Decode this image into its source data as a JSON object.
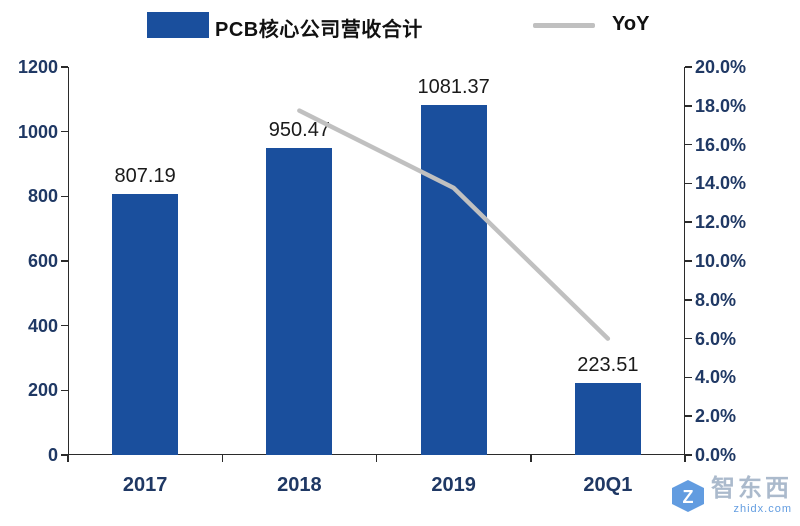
{
  "legend": {
    "bar_label": "PCB核心公司营收合计",
    "line_label": "YoY"
  },
  "colors": {
    "bar": "#1a4f9d",
    "line": "#c0c0c0",
    "axis_text": "#1f3864",
    "data_label": "#1a1a1a",
    "axis_line": "#2b2b2b",
    "watermark": "#2e7cd6"
  },
  "chart_data": {
    "type": "bar",
    "subtype": "bar-line combo with dual y-axes",
    "title": "",
    "categories": [
      "2017",
      "2018",
      "2019",
      "20Q1"
    ],
    "series": [
      {
        "name": "PCB核心公司营收合计",
        "type": "bar",
        "axis": "left",
        "values": [
          807.19,
          950.47,
          1081.37,
          223.51
        ]
      },
      {
        "name": "YoY",
        "type": "line",
        "axis": "right",
        "unit": "%",
        "values": [
          null,
          17.75,
          13.77,
          6.0
        ]
      }
    ],
    "data_labels": [
      "807.19",
      "950.47",
      "1081.37",
      "223.51"
    ],
    "left_axis": {
      "min": 0,
      "max": 1200,
      "step": 200,
      "ticks": [
        "0",
        "200",
        "400",
        "600",
        "800",
        "1000",
        "1200"
      ]
    },
    "right_axis": {
      "min": 0,
      "max": 20,
      "step": 2,
      "ticks": [
        "0.0%",
        "2.0%",
        "4.0%",
        "6.0%",
        "8.0%",
        "10.0%",
        "12.0%",
        "14.0%",
        "16.0%",
        "18.0%",
        "20.0%"
      ]
    },
    "grid": false,
    "legend_position": "top"
  },
  "watermark": {
    "name": "智东西",
    "subtext": "zhidx.com"
  }
}
